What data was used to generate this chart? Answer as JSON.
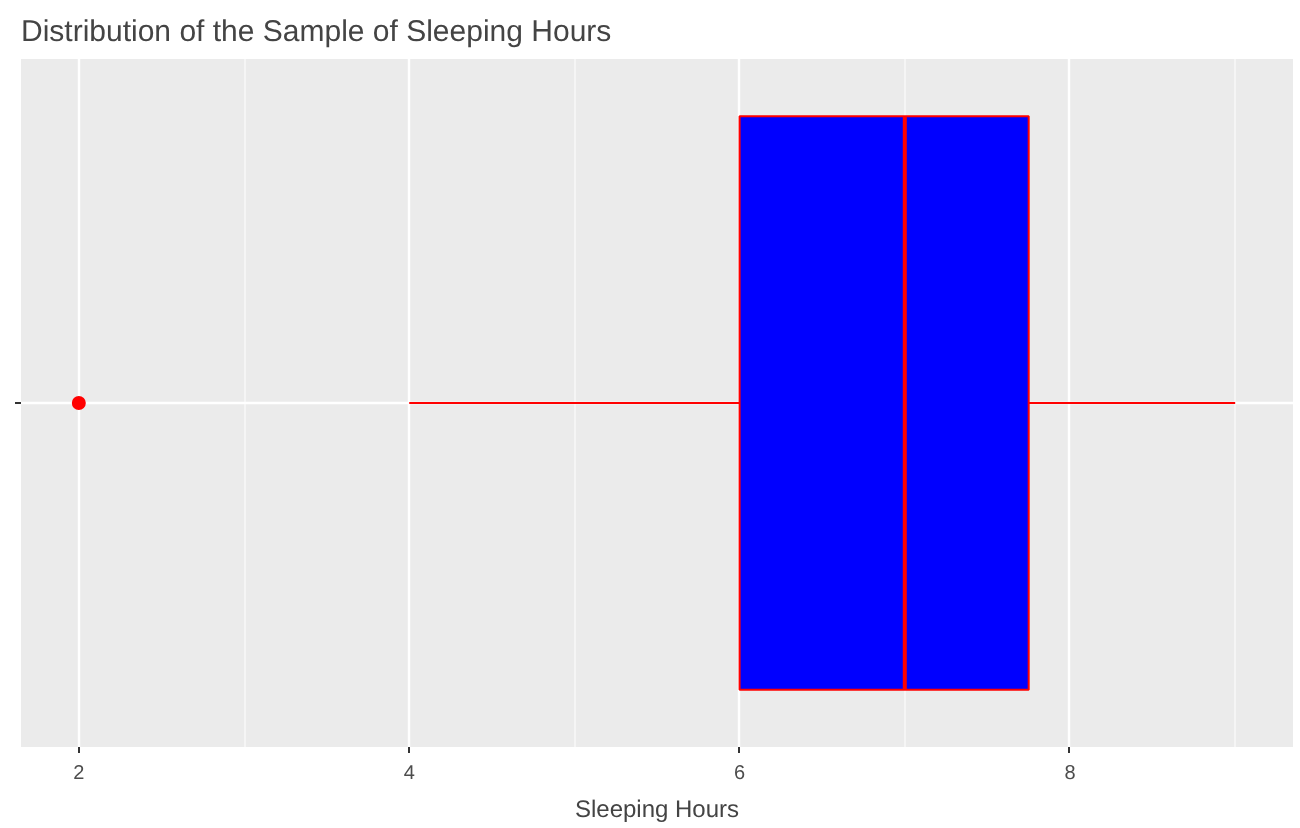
{
  "chart_data": {
    "type": "box",
    "title": "Distribution of the Sample of Sleeping Hours",
    "xlabel": "Sleeping Hours",
    "orientation": "horizontal",
    "categories": [
      null
    ],
    "series": [
      {
        "color": "#ff0000",
        "colors": [
          "#0000ff"
        ],
        "boxes": [
          {
            "low": 4,
            "q1": 6,
            "median": 7,
            "q3": 7.75,
            "high": 9,
            "outliers": [
              2
            ]
          }
        ]
      }
    ],
    "xlim": [
      1.65,
      9.35
    ],
    "xticks": [
      2,
      4,
      6,
      8
    ],
    "grid": true
  }
}
